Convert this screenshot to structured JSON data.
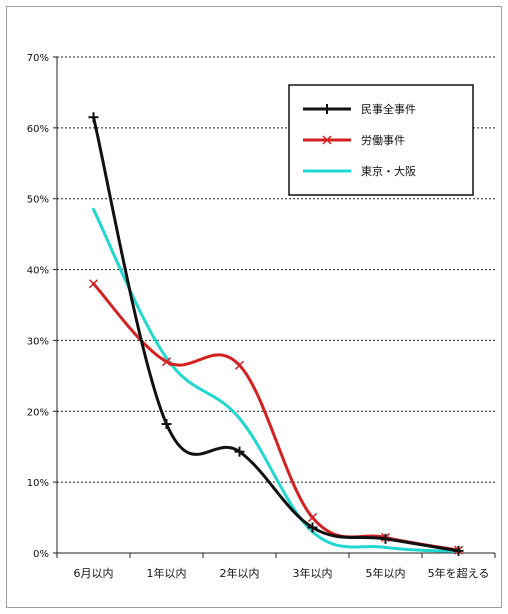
{
  "chart_data": {
    "type": "line",
    "categories": [
      "6月以内",
      "1年以内",
      "2年以内",
      "3年以内",
      "5年以内",
      "5年を超える"
    ],
    "y_ticks": [
      "0%",
      "10%",
      "20%",
      "30%",
      "40%",
      "50%",
      "60%",
      "70%"
    ],
    "ylim": [
      0,
      70
    ],
    "grid": true,
    "smooth": true,
    "legend_position": "top-right",
    "series": [
      {
        "name": "民事全事件",
        "color": "#111111",
        "marker": "plus",
        "values": [
          61.5,
          18.2,
          14.3,
          3.6,
          2.0,
          0.3
        ]
      },
      {
        "name": "労働事件",
        "color": "#d42020",
        "marker": "cross",
        "values": [
          38.0,
          27.0,
          26.5,
          5.0,
          2.2,
          0.4
        ]
      },
      {
        "name": "東京・大阪",
        "color": "#20d8d0",
        "marker": "none",
        "values": [
          48.5,
          27.5,
          19.0,
          3.0,
          0.8,
          0.2
        ]
      }
    ]
  }
}
